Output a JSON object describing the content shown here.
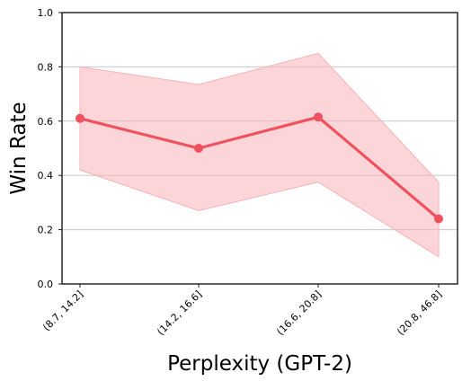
{
  "chart_data": {
    "type": "line",
    "title": "",
    "xlabel": "Perplexity (GPT-2)",
    "ylabel": "Win Rate",
    "categories": [
      "(8.7, 14.2]",
      "(14.2, 16.6]",
      "(16.6, 20.8]",
      "(20.8, 46.8]"
    ],
    "series": [
      {
        "values": [
          0.61,
          0.5,
          0.615,
          0.24
        ],
        "lower": [
          0.42,
          0.27,
          0.375,
          0.1
        ],
        "upper": [
          0.8,
          0.735,
          0.85,
          0.375
        ]
      }
    ],
    "ylim": [
      0.0,
      1.0
    ],
    "yticks": [
      "0.0",
      "0.2",
      "0.4",
      "0.6",
      "0.8",
      "1.0"
    ],
    "grid": "horizontal",
    "line_color": "#f0515e",
    "band_color": "#f8b2b8"
  }
}
